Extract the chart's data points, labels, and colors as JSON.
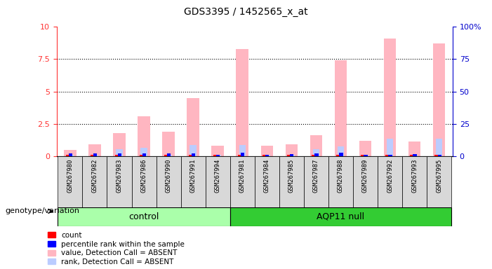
{
  "title": "GDS3395 / 1452565_x_at",
  "samples": [
    "GSM267980",
    "GSM267982",
    "GSM267983",
    "GSM267986",
    "GSM267990",
    "GSM267991",
    "GSM267994",
    "GSM267981",
    "GSM267984",
    "GSM267985",
    "GSM267987",
    "GSM267988",
    "GSM267989",
    "GSM267992",
    "GSM267993",
    "GSM267995"
  ],
  "n_control": 7,
  "n_aqp11": 9,
  "count_values": [
    0.12,
    0.12,
    0.12,
    0.12,
    0.12,
    0.12,
    0.12,
    0.12,
    0.12,
    0.12,
    0.12,
    0.12,
    0.12,
    0.12,
    0.12,
    0.12
  ],
  "percentile_values": [
    0.18,
    0.18,
    0.22,
    0.22,
    0.18,
    0.22,
    0.12,
    0.28,
    0.12,
    0.16,
    0.22,
    0.28,
    0.12,
    0.12,
    0.16,
    0.12
  ],
  "pink_bar_values": [
    0.5,
    0.9,
    1.8,
    3.1,
    1.9,
    4.5,
    0.8,
    8.3,
    0.8,
    0.9,
    1.6,
    7.4,
    1.2,
    9.1,
    1.1,
    8.7
  ],
  "blue_bar_values": [
    0.12,
    0.12,
    0.55,
    0.65,
    0.12,
    0.85,
    0.12,
    0.85,
    0.12,
    0.12,
    0.55,
    0.72,
    0.12,
    1.35,
    0.12,
    1.35
  ],
  "ylim": [
    0,
    10
  ],
  "yticks": [
    0,
    2.5,
    5,
    7.5,
    10
  ],
  "ytick_labels_left": [
    "0",
    "2.5",
    "5",
    "7.5",
    "10"
  ],
  "ytick_labels_right": [
    "0",
    "25",
    "50",
    "75",
    "100%"
  ],
  "axis_color_left": "#FF3333",
  "axis_color_right": "#0000CC",
  "control_color": "#AAFFAA",
  "aqp11_color": "#33CC33",
  "legend_items": [
    "count",
    "percentile rank within the sample",
    "value, Detection Call = ABSENT",
    "rank, Detection Call = ABSENT"
  ],
  "legend_colors": [
    "#FF0000",
    "#0000FF",
    "#FFB6C1",
    "#BBCCFF"
  ]
}
